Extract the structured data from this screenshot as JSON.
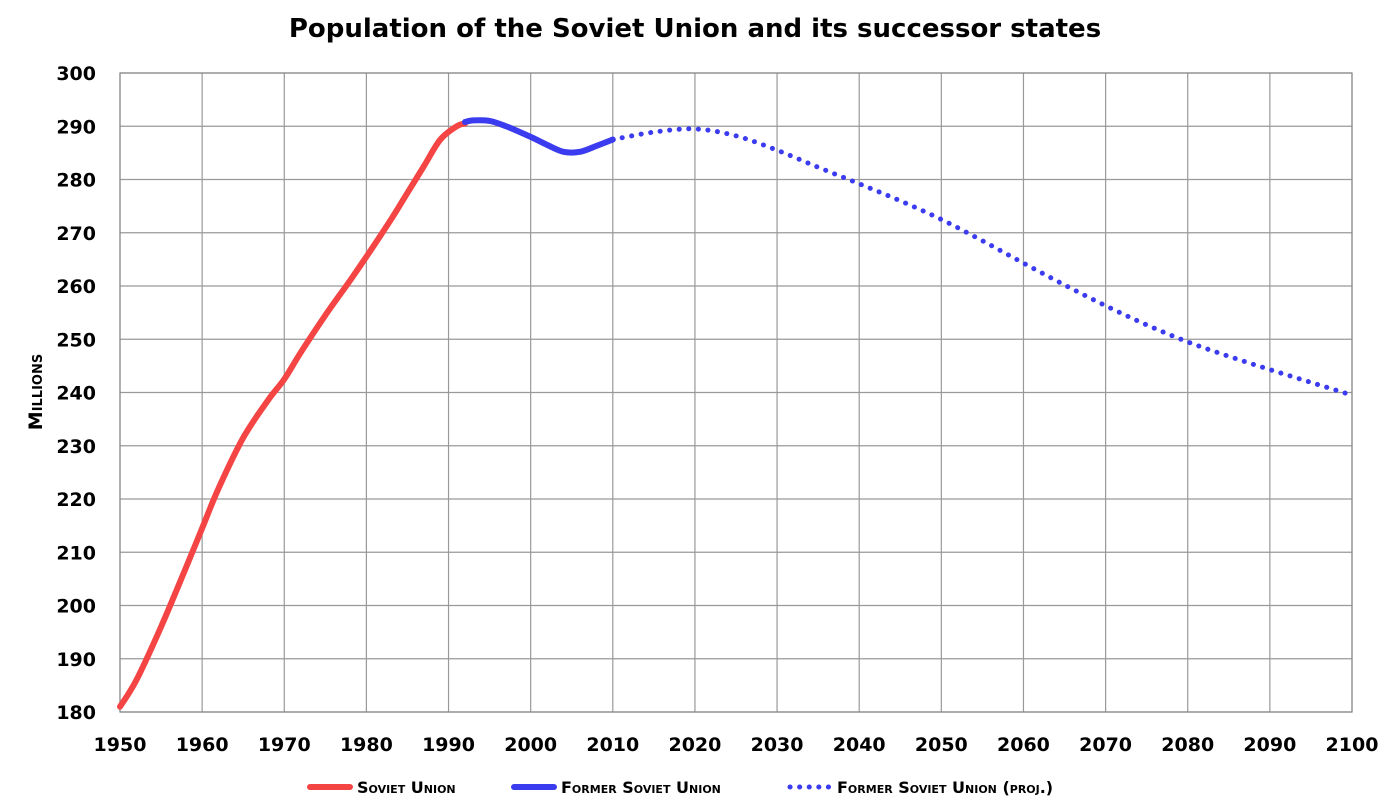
{
  "chart_data": {
    "type": "line",
    "title": "Population of the Soviet Union and its successor states",
    "xlabel": "",
    "ylabel": "Millions",
    "xlim": [
      1950,
      2100
    ],
    "ylim": [
      180,
      300
    ],
    "grid": true,
    "legend_position": "bottom",
    "x_ticks": [
      "1950",
      "1960",
      "1970",
      "1980",
      "1990",
      "2000",
      "2010",
      "2020",
      "2030",
      "2040",
      "2050",
      "2060",
      "2070",
      "2080",
      "2090",
      "2100"
    ],
    "y_ticks": [
      "180",
      "190",
      "200",
      "210",
      "220",
      "230",
      "240",
      "250",
      "260",
      "270",
      "280",
      "290",
      "300"
    ],
    "series": [
      {
        "name": "Soviet Union",
        "color": "#f44444",
        "style": "solid",
        "x": [
          1950,
          1952,
          1955,
          1958,
          1960,
          1962,
          1965,
          1968,
          1970,
          1972,
          1975,
          1978,
          1980,
          1983,
          1985,
          1987,
          1989,
          1991,
          1992
        ],
        "y": [
          181.0,
          186.0,
          196.0,
          207.0,
          214.5,
          222.0,
          231.5,
          238.5,
          242.5,
          247.5,
          254.5,
          261.0,
          265.5,
          272.5,
          277.5,
          282.5,
          287.5,
          290.0,
          290.5
        ]
      },
      {
        "name": "Former Soviet Union",
        "color": "#3b3bef",
        "style": "solid",
        "x": [
          1992,
          1993,
          1995,
          1997,
          2000,
          2002,
          2004,
          2006,
          2008,
          2010
        ],
        "y": [
          290.8,
          291.1,
          291.0,
          290.0,
          288.0,
          286.5,
          285.2,
          285.2,
          286.3,
          287.5
        ]
      },
      {
        "name": "Former Soviet Union (proj.)",
        "color": "#3b3bef",
        "style": "dotted",
        "x": [
          2010,
          2015,
          2020,
          2025,
          2030,
          2035,
          2040,
          2045,
          2050,
          2055,
          2060,
          2065,
          2070,
          2075,
          2080,
          2085,
          2090,
          2095,
          2100
        ],
        "y": [
          287.5,
          288.9,
          289.5,
          288.2,
          285.5,
          282.3,
          279.2,
          276.0,
          272.5,
          268.5,
          264.3,
          260.2,
          256.3,
          252.7,
          249.5,
          246.8,
          244.3,
          241.9,
          239.5
        ]
      }
    ]
  }
}
